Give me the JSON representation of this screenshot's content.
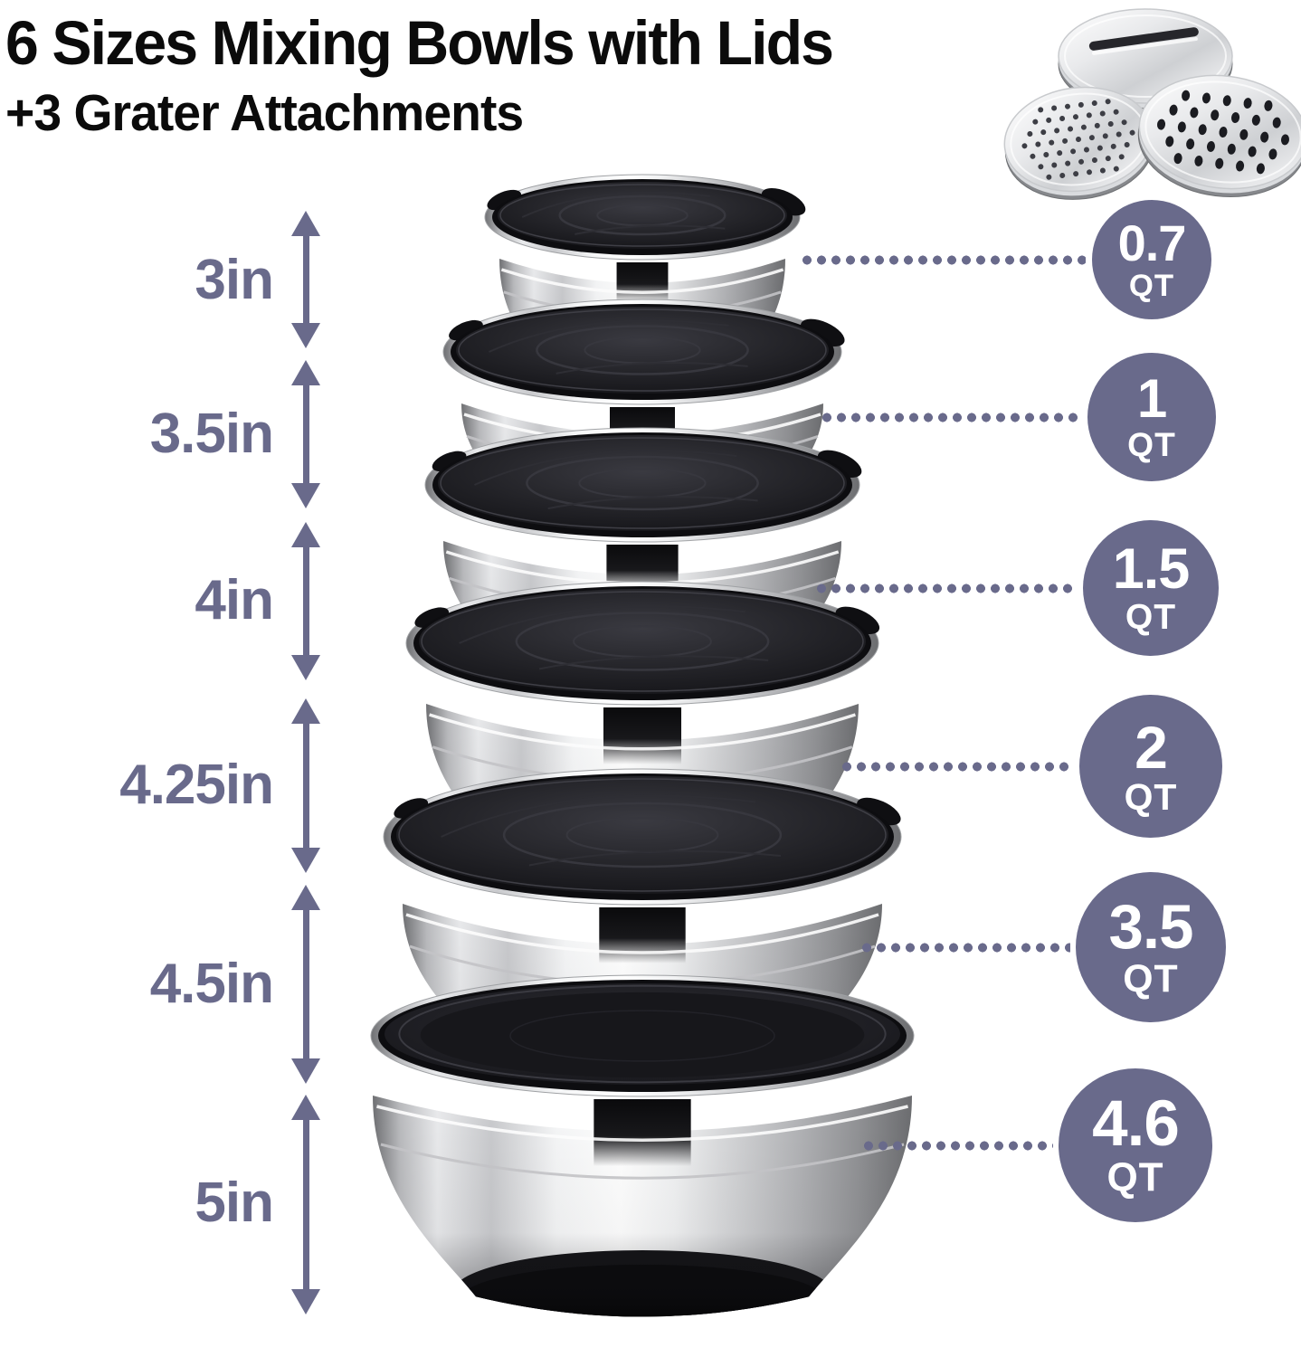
{
  "title": {
    "line1": "6 Sizes Mixing Bowls with Lids",
    "line2": "+3 Grater Attachments"
  },
  "measurements": [
    {
      "label": "3in"
    },
    {
      "label": "3.5in"
    },
    {
      "label": "4in"
    },
    {
      "label": "4.25in"
    },
    {
      "label": "4.5in"
    },
    {
      "label": "5in"
    }
  ],
  "capacities": [
    {
      "value": "0.7",
      "unit": "QT"
    },
    {
      "value": "1",
      "unit": "QT"
    },
    {
      "value": "1.5",
      "unit": "QT"
    },
    {
      "value": "2",
      "unit": "QT"
    },
    {
      "value": "3.5",
      "unit": "QT"
    },
    {
      "value": "4.6",
      "unit": "QT"
    }
  ],
  "colors": {
    "accent": "#696a8b",
    "badge_text": "#ffffff",
    "title_text": "#0b0b0b",
    "lid_black": "#141417",
    "steel_light": "#f5f6f7"
  },
  "items": {
    "bowls": "6 stainless steel mixing bowls with black lids",
    "graters": "3 grater attachment discs"
  }
}
